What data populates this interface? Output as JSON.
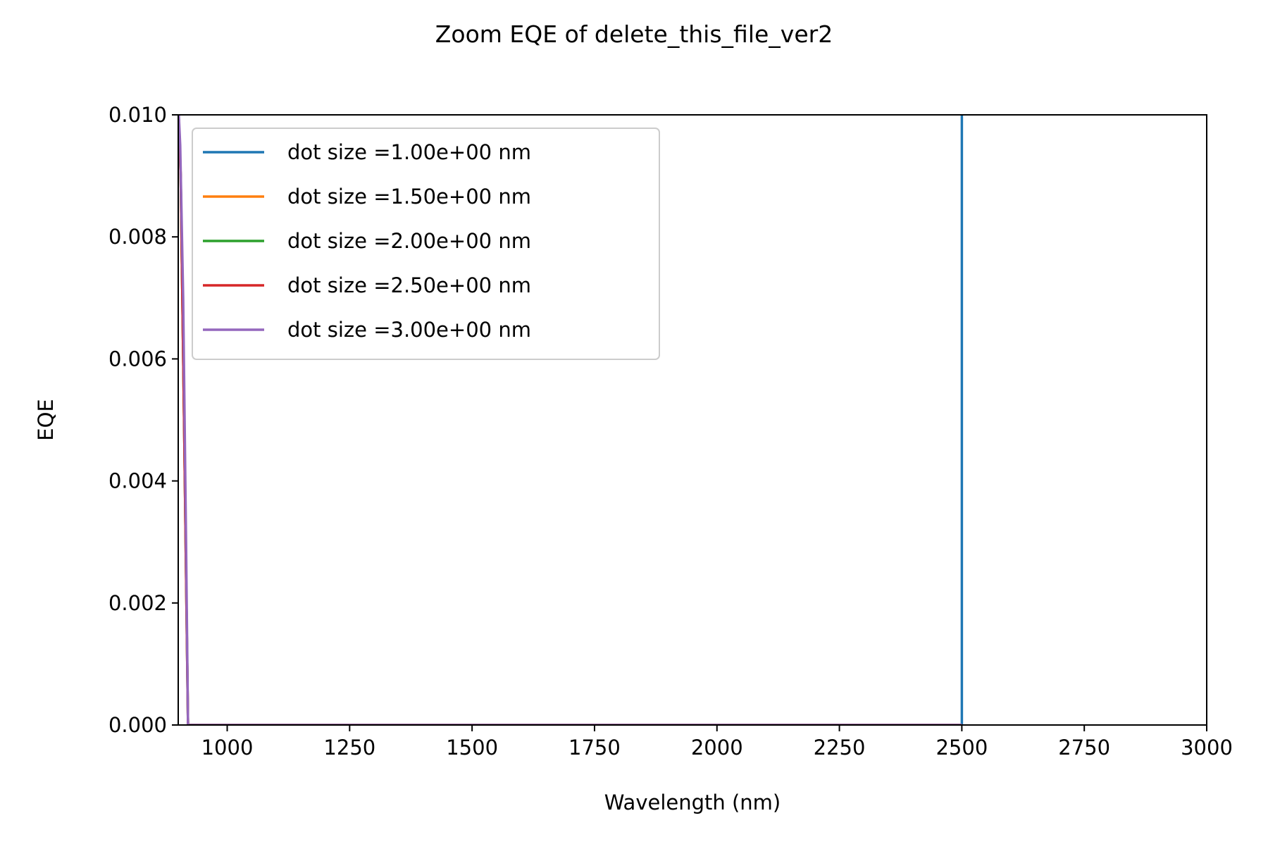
{
  "chart_data": {
    "type": "line",
    "title": "Zoom EQE of delete_this_file_ver2",
    "xlabel": "Wavelength (nm)",
    "ylabel": "EQE",
    "xlim": [
      900,
      3000
    ],
    "ylim": [
      0,
      0.01
    ],
    "xticks": [
      1000,
      1250,
      1500,
      1750,
      2000,
      2250,
      2500,
      2750,
      3000
    ],
    "xtick_labels": [
      "1000",
      "1250",
      "1500",
      "1750",
      "2000",
      "2250",
      "2500",
      "2750",
      "3000"
    ],
    "yticks": [
      0,
      0.002,
      0.004,
      0.006,
      0.008,
      0.01
    ],
    "ytick_labels": [
      "0.000",
      "0.002",
      "0.004",
      "0.006",
      "0.008",
      "0.010"
    ],
    "grid": false,
    "legend_position": "top-left",
    "series": [
      {
        "name": "dot size =1.00e+00 nm",
        "color": "#1f77b4",
        "x": [
          2500,
          2500,
          2500
        ],
        "y": [
          0,
          0.005,
          0.0102
        ]
      },
      {
        "name": "dot size =1.50e+00 nm",
        "color": "#ff7f0e",
        "x": [
          900,
          905,
          912,
          920,
          1000,
          1500,
          2000,
          2500
        ],
        "y": [
          0.0102,
          0.009,
          0.005,
          0,
          0,
          0,
          0,
          0
        ]
      },
      {
        "name": "dot size =2.00e+00 nm",
        "color": "#2ca02c",
        "x": [
          900,
          905,
          912,
          920,
          1000,
          1500,
          2000,
          2500
        ],
        "y": [
          0.0102,
          0.009,
          0.005,
          0,
          0,
          0,
          0,
          0
        ]
      },
      {
        "name": "dot size =2.50e+00 nm",
        "color": "#d62728",
        "x": [
          900,
          905,
          912,
          920,
          1000,
          1500,
          2000,
          2500
        ],
        "y": [
          0.0102,
          0.009,
          0.005,
          0,
          0,
          0,
          0,
          0
        ]
      },
      {
        "name": "dot size =3.00e+00 nm",
        "color": "#9467bd",
        "x": [
          900,
          904,
          910,
          916,
          920,
          1000,
          1500,
          2000,
          2500
        ],
        "y": [
          0.0102,
          0.0095,
          0.007,
          0.003,
          0,
          0,
          0,
          0,
          0
        ]
      }
    ]
  }
}
